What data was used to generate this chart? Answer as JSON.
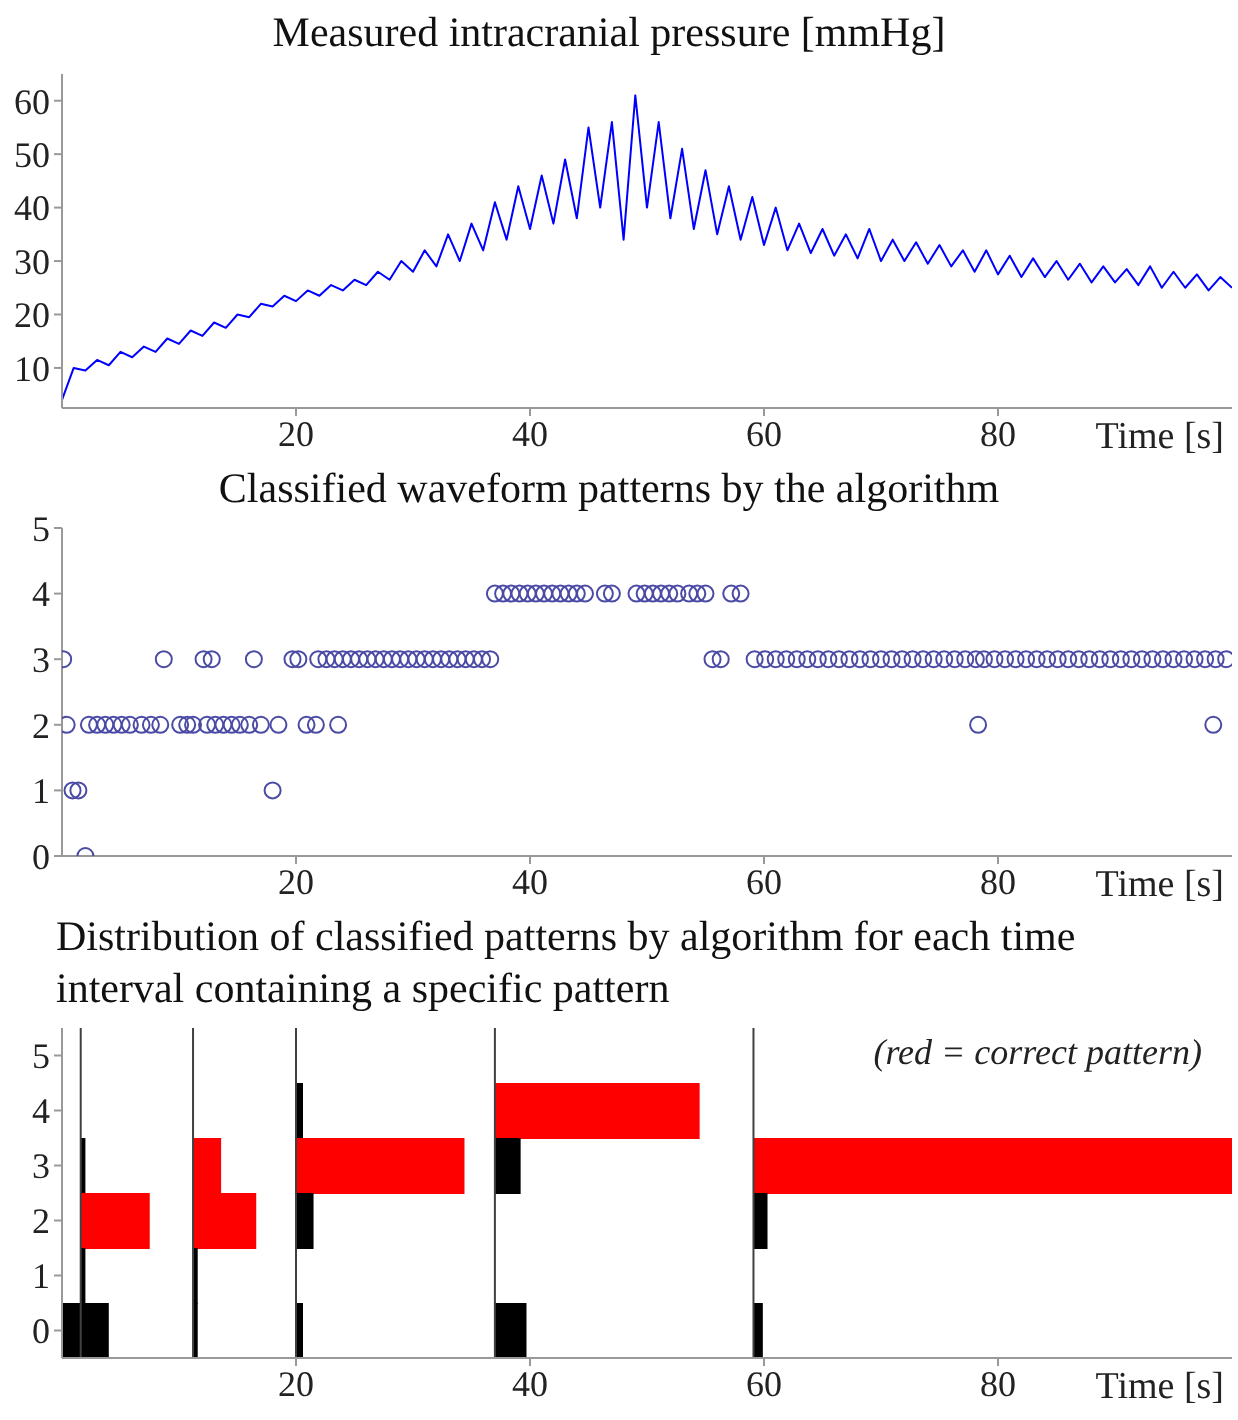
{
  "chart_data": [
    {
      "type": "line",
      "title": "Measured intracranial pressure [mmHg]",
      "xlabel": "Time [s]",
      "x": [
        0,
        1,
        2,
        3,
        4,
        5,
        6,
        7,
        8,
        9,
        10,
        11,
        12,
        13,
        14,
        15,
        16,
        17,
        18,
        19,
        20,
        21,
        22,
        23,
        24,
        25,
        26,
        27,
        28,
        29,
        30,
        31,
        32,
        33,
        34,
        35,
        36,
        37,
        38,
        39,
        40,
        41,
        42,
        43,
        44,
        45,
        46,
        47,
        48,
        49,
        50,
        51,
        52,
        53,
        54,
        55,
        56,
        57,
        58,
        59,
        60,
        61,
        62,
        63,
        64,
        65,
        66,
        67,
        68,
        69,
        70,
        71,
        72,
        73,
        74,
        75,
        76,
        77,
        78,
        79,
        80,
        81,
        82,
        83,
        84,
        85,
        86,
        87,
        88,
        89,
        90,
        91,
        92,
        93,
        94,
        95,
        96,
        97,
        98,
        99,
        100
      ],
      "series": [
        {
          "color": "#0000ff",
          "values": [
            4,
            10,
            9.5,
            11.5,
            10.5,
            13,
            12,
            14,
            13,
            15.5,
            14.5,
            17,
            16,
            18.5,
            17.5,
            20,
            19.5,
            22,
            21.5,
            23.5,
            22.5,
            24.5,
            23.5,
            25.5,
            24.5,
            26.5,
            25.5,
            28,
            26.5,
            30,
            28,
            32,
            29,
            35,
            30,
            37,
            32,
            41,
            34,
            44,
            36,
            46,
            37,
            49,
            38,
            55,
            40,
            56,
            34,
            61,
            40,
            56,
            38,
            51,
            36,
            47,
            35,
            44,
            34,
            42,
            33,
            40,
            32,
            37,
            31.5,
            36,
            31,
            35,
            30.5,
            36,
            30,
            34,
            30,
            33.5,
            29.5,
            33,
            29,
            32,
            28,
            32,
            27.5,
            31,
            27,
            30.5,
            27,
            30,
            26.5,
            29.5,
            26,
            29,
            26,
            28.5,
            25.5,
            29,
            25,
            28,
            25,
            27.5,
            24.5,
            27,
            25
          ]
        }
      ],
      "xlim": [
        0,
        100
      ],
      "xticks": [
        20,
        40,
        60,
        80
      ],
      "ylim": [
        2.5,
        65
      ],
      "yticks": [
        10,
        20,
        30,
        40,
        50,
        60
      ],
      "marker": "none",
      "line_style": "solid"
    },
    {
      "type": "scatter",
      "title": "Classified waveform patterns by the algorithm",
      "xlabel": "Time [s]",
      "series": [
        {
          "color": "#4b4ba6",
          "x": [
            0.1,
            8.7,
            12.1,
            12.8,
            16.4,
            19.7,
            20.2,
            21.9,
            22.6,
            23.3,
            24.0,
            24.7,
            25.4,
            26.1,
            26.8,
            27.5,
            28.2,
            28.9,
            29.6,
            30.3,
            31.0,
            31.7,
            32.4,
            33.1,
            33.8,
            34.5,
            35.2,
            35.9,
            36.6,
            37.0,
            37.7,
            38.4,
            39.1,
            39.8,
            40.5,
            41.2,
            41.9,
            42.6,
            43.3,
            44.0,
            44.7,
            46.4,
            47.0,
            49.1,
            49.8,
            50.5,
            51.2,
            51.9,
            52.6,
            53.6,
            54.3,
            55.0,
            57.2,
            58.0,
            55.6,
            56.3,
            59.2,
            60.1,
            61.0,
            61.9,
            62.8,
            63.7,
            64.6,
            65.5,
            66.4,
            67.3,
            68.2,
            69.1,
            70.0,
            70.9,
            71.8,
            72.7,
            73.6,
            74.5,
            75.4,
            76.3,
            77.2,
            78.1,
            78.8,
            79.7,
            80.6,
            81.5,
            82.4,
            83.3,
            84.2,
            85.1,
            86.0,
            86.9,
            87.8,
            88.7,
            89.6,
            90.5,
            91.4,
            92.3,
            93.2,
            94.1,
            95.0,
            95.9,
            96.8,
            97.7,
            98.6,
            99.5,
            0.4,
            2.3,
            3.0,
            3.7,
            4.4,
            5.1,
            5.8,
            6.8,
            7.6,
            8.4,
            10.1,
            10.7,
            11.2,
            12.4,
            13.1,
            13.8,
            14.5,
            15.2,
            16.0,
            17.0,
            18.5,
            20.9,
            21.7,
            23.6,
            78.3,
            98.4,
            0.9,
            1.4,
            18.0,
            2.0
          ],
          "values": [
            3,
            3,
            3,
            3,
            3,
            3,
            3,
            3,
            3,
            3,
            3,
            3,
            3,
            3,
            3,
            3,
            3,
            3,
            3,
            3,
            3,
            3,
            3,
            3,
            3,
            3,
            3,
            3,
            3,
            4,
            4,
            4,
            4,
            4,
            4,
            4,
            4,
            4,
            4,
            4,
            4,
            4,
            4,
            4,
            4,
            4,
            4,
            4,
            4,
            4,
            4,
            4,
            4,
            4,
            3,
            3,
            3,
            3,
            3,
            3,
            3,
            3,
            3,
            3,
            3,
            3,
            3,
            3,
            3,
            3,
            3,
            3,
            3,
            3,
            3,
            3,
            3,
            3,
            3,
            3,
            3,
            3,
            3,
            3,
            3,
            3,
            3,
            3,
            3,
            3,
            3,
            3,
            3,
            3,
            3,
            3,
            3,
            3,
            3,
            3,
            3,
            3,
            2,
            2,
            2,
            2,
            2,
            2,
            2,
            2,
            2,
            2,
            2,
            2,
            2,
            2,
            2,
            2,
            2,
            2,
            2,
            2,
            2,
            2,
            2,
            2,
            2,
            2,
            1,
            1,
            1,
            0
          ]
        }
      ],
      "xlim": [
        0,
        100
      ],
      "xticks": [
        20,
        40,
        60,
        80
      ],
      "ylim": [
        0,
        5
      ],
      "yticks": [
        0,
        1,
        2,
        3,
        4,
        5
      ],
      "marker": "circle"
    },
    {
      "type": "bar",
      "orientation": "horizontal",
      "title": "Distribution of classified patterns by algorithm for each time interval containing a specific pattern",
      "xlabel": "Time [s]",
      "annotations": [
        "(red = correct pattern)"
      ],
      "categories": [
        "5",
        "4",
        "3",
        "2",
        "1",
        "0"
      ],
      "series": [
        {
          "values": [
            null,
            null,
            0.4,
            5.9,
            0.4,
            4.0
          ],
          "base": [
            null,
            null,
            1.6,
            1.6,
            1.6,
            0
          ],
          "colors": [
            null,
            null,
            "#000000",
            "#ff0000",
            "#000000",
            "#000000"
          ]
        },
        {
          "values": [
            null,
            null,
            2.4,
            5.4,
            0.4,
            0.4
          ],
          "base": [
            null,
            null,
            11.2,
            11.2,
            11.2,
            11.2
          ],
          "colors": [
            null,
            null,
            "#ff0000",
            "#ff0000",
            "#000000",
            "#000000"
          ]
        },
        {
          "values": [
            null,
            0.6,
            14.4,
            1.5,
            null,
            0.6
          ],
          "base": [
            null,
            20,
            20,
            20,
            null,
            20
          ],
          "colors": [
            null,
            "#000000",
            "#ff0000",
            "#000000",
            null,
            "#000000"
          ]
        },
        {
          "values": [
            null,
            17.5,
            2.2,
            null,
            null,
            2.7
          ],
          "base": [
            null,
            37,
            37,
            null,
            null,
            37
          ],
          "colors": [
            null,
            "#ff0000",
            "#000000",
            null,
            null,
            "#000000"
          ]
        },
        {
          "values": [
            null,
            null,
            40.9,
            1.2,
            null,
            0.8
          ],
          "base": [
            null,
            null,
            59.1,
            59.1,
            null,
            59.1
          ],
          "colors": [
            null,
            null,
            "#ff0000",
            "#000000",
            null,
            "#000000"
          ]
        }
      ],
      "xlim": [
        0,
        100
      ],
      "xticks": [
        20,
        40,
        60,
        80
      ],
      "ref_lines": [
        {
          "axis": "x",
          "value": 1.6,
          "color": "#404040"
        },
        {
          "axis": "x",
          "value": 11.2,
          "color": "#404040"
        },
        {
          "axis": "x",
          "value": 20,
          "color": "#404040"
        },
        {
          "axis": "x",
          "value": 37,
          "color": "#404040"
        },
        {
          "axis": "x",
          "value": 59.1,
          "color": "#404040"
        }
      ]
    }
  ]
}
